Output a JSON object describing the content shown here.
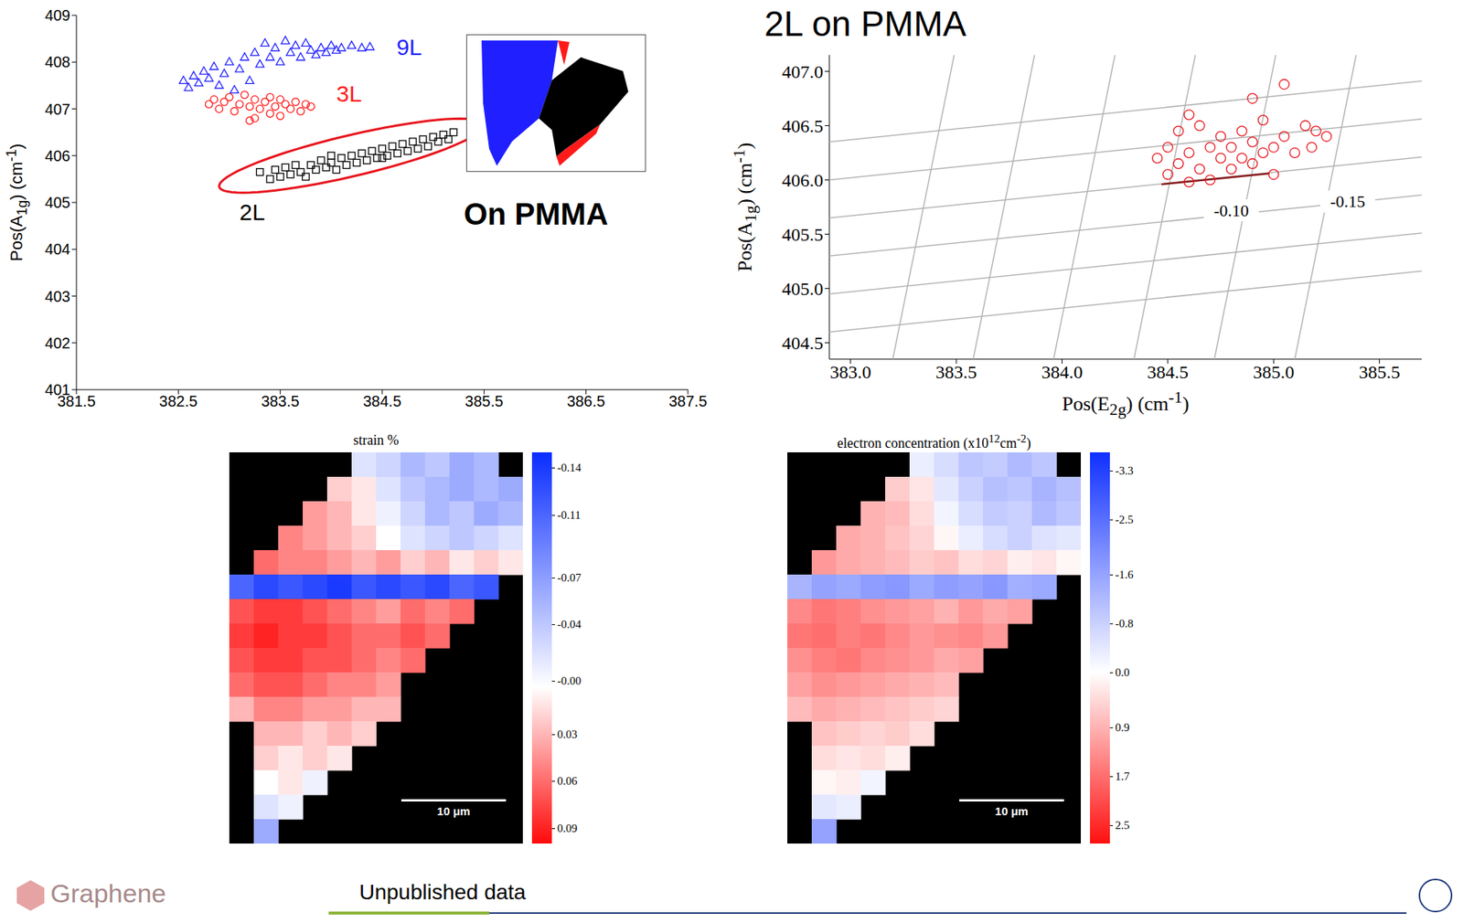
{
  "title": "2L on PMMA",
  "footer": {
    "note": "Unpublished data",
    "logo": "Graphene"
  },
  "chart_data": [
    {
      "type": "scatter",
      "grid": false,
      "xlim": [
        381.5,
        387.5
      ],
      "xticks": [
        381.5,
        382.5,
        383.5,
        384.5,
        385.5,
        386.5,
        387.5
      ],
      "ylim": [
        401,
        409
      ],
      "yticks": [
        401,
        402,
        403,
        404,
        405,
        406,
        407,
        408,
        409
      ],
      "y_label": "Pos(A1g) (cm-1)",
      "series": [
        {
          "name": "9L",
          "color": "#1f1fff",
          "marker": "triangle",
          "label_at": [
            384.64,
            408.32
          ],
          "x": [
            382.55,
            382.6,
            382.65,
            382.7,
            382.75,
            382.8,
            382.85,
            382.9,
            382.95,
            383.0,
            383.05,
            383.1,
            383.15,
            383.2,
            383.25,
            383.3,
            383.35,
            383.4,
            383.45,
            383.5,
            383.55,
            383.6,
            383.65,
            383.7,
            383.75,
            383.8,
            383.85,
            383.9,
            383.95,
            384.0,
            384.05,
            384.1,
            384.2,
            384.3,
            384.38
          ],
          "y": [
            407.6,
            407.45,
            407.7,
            407.55,
            407.8,
            407.65,
            407.9,
            407.5,
            407.75,
            408.0,
            407.4,
            407.85,
            408.1,
            407.6,
            408.2,
            407.95,
            408.4,
            408.1,
            408.3,
            408.0,
            408.45,
            408.2,
            408.35,
            408.1,
            408.4,
            408.25,
            408.15,
            408.3,
            408.2,
            408.35,
            408.25,
            408.3,
            408.35,
            408.3,
            408.32
          ]
        },
        {
          "name": "3L",
          "color": "#ff1a1a",
          "marker": "circle",
          "label_at": [
            384.05,
            407.33
          ],
          "x": [
            382.8,
            382.85,
            382.9,
            382.95,
            383.0,
            383.05,
            383.1,
            383.15,
            383.2,
            383.25,
            383.25,
            383.3,
            383.35,
            383.4,
            383.4,
            383.45,
            383.5,
            383.5,
            383.55,
            383.6,
            383.65,
            383.7,
            383.75,
            383.8,
            383.2
          ],
          "y": [
            407.1,
            407.2,
            407.0,
            407.15,
            407.25,
            406.95,
            407.1,
            407.3,
            407.05,
            406.8,
            407.2,
            407.0,
            407.15,
            406.9,
            407.25,
            407.05,
            407.2,
            406.85,
            407.1,
            407.0,
            407.15,
            406.95,
            407.1,
            407.05,
            406.75
          ]
        },
        {
          "name": "2L",
          "color": "#000000",
          "marker": "square",
          "label_at": [
            383.1,
            404.8
          ],
          "x": [
            383.3,
            383.4,
            383.45,
            383.5,
            383.55,
            383.6,
            383.65,
            383.7,
            383.75,
            383.8,
            383.85,
            383.9,
            383.95,
            384.0,
            384.05,
            384.1,
            384.15,
            384.2,
            384.25,
            384.3,
            384.35,
            384.4,
            384.45,
            384.5,
            384.55,
            384.6,
            384.65,
            384.7,
            384.75,
            384.8,
            384.85,
            384.9,
            384.95,
            385.0,
            385.05,
            385.1,
            385.15,
            385.2,
            384.0,
            384.5
          ],
          "y": [
            405.65,
            405.5,
            405.7,
            405.55,
            405.75,
            405.6,
            405.8,
            405.65,
            405.55,
            405.8,
            405.7,
            405.9,
            405.75,
            405.85,
            405.7,
            405.95,
            405.8,
            406.0,
            405.85,
            406.05,
            405.9,
            406.1,
            405.95,
            406.15,
            406.0,
            406.2,
            406.05,
            406.25,
            406.1,
            406.3,
            406.15,
            406.35,
            406.2,
            406.4,
            406.3,
            406.45,
            406.35,
            406.5,
            406.0,
            405.95
          ]
        }
      ],
      "highlight": {
        "cx": 384.2,
        "cy": 406.0,
        "rx": 1.3,
        "ry": 0.45,
        "slope": 0.5,
        "color": "#e8141c"
      },
      "annotations": [
        {
          "text": "On PMMA",
          "x": 385.3,
          "y": 404.75,
          "color": "#000000"
        }
      ]
    },
    {
      "type": "heatmap",
      "title": "strain %",
      "tick_labels": false,
      "scale_bar": "10 μm",
      "colorbar": {
        "range": [
          -0.15,
          0.1
        ],
        "ticks": [
          -0.14,
          -0.11,
          -0.07,
          -0.04,
          {
            "value": -0.004,
            "label": "-0.00"
          },
          0.03,
          0.06,
          0.09
        ],
        "colors": [
          "#0a2dff",
          "#ffffff",
          "#ff0a0a"
        ]
      },
      "cells": [
        [
          null,
          null,
          null,
          null,
          null,
          -0.02,
          -0.03,
          -0.05,
          -0.04,
          -0.06,
          -0.05,
          null
        ],
        [
          null,
          null,
          null,
          null,
          0.02,
          0.01,
          -0.02,
          -0.04,
          -0.05,
          -0.06,
          -0.05,
          -0.06
        ],
        [
          null,
          null,
          null,
          0.04,
          0.03,
          0.01,
          -0.01,
          -0.03,
          -0.05,
          -0.04,
          -0.06,
          -0.05
        ],
        [
          null,
          null,
          0.05,
          0.04,
          0.03,
          0.02,
          0,
          -0.02,
          -0.03,
          -0.04,
          -0.03,
          -0.02
        ],
        [
          null,
          0.06,
          0.05,
          0.05,
          0.04,
          0.03,
          0.04,
          0.02,
          0.03,
          0.01,
          0.02,
          0.01
        ],
        [
          -0.11,
          -0.13,
          -0.12,
          -0.13,
          -0.14,
          -0.12,
          -0.13,
          -0.12,
          -0.13,
          -0.11,
          -0.12,
          null
        ],
        [
          0.07,
          0.08,
          0.08,
          0.07,
          0.06,
          0.05,
          0.04,
          0.06,
          0.05,
          0.06,
          null,
          null
        ],
        [
          0.08,
          0.09,
          0.08,
          0.08,
          0.07,
          0.06,
          0.06,
          0.07,
          0.06,
          null,
          null,
          null
        ],
        [
          0.07,
          0.08,
          0.08,
          0.07,
          0.07,
          0.06,
          0.05,
          0.06,
          null,
          null,
          null,
          null
        ],
        [
          0.06,
          0.07,
          0.07,
          0.06,
          0.05,
          0.05,
          0.04,
          null,
          null,
          null,
          null,
          null
        ],
        [
          0.03,
          0.05,
          0.05,
          0.04,
          0.04,
          0.03,
          0.03,
          null,
          null,
          null,
          null,
          null
        ],
        [
          null,
          0.03,
          0.03,
          0.02,
          0.03,
          0.02,
          null,
          null,
          null,
          null,
          null,
          null
        ],
        [
          null,
          0.02,
          0.01,
          0.02,
          0.01,
          null,
          null,
          null,
          null,
          null,
          null,
          null
        ],
        [
          null,
          0,
          0.01,
          -0.01,
          null,
          null,
          null,
          null,
          null,
          null,
          null,
          null
        ],
        [
          null,
          -0.02,
          -0.01,
          null,
          null,
          null,
          null,
          null,
          null,
          null,
          null,
          null
        ],
        [
          null,
          -0.06,
          null,
          null,
          null,
          null,
          null,
          null,
          null,
          null,
          null,
          null
        ]
      ]
    },
    {
      "type": "heatmap",
      "title": "electron concentration (x1012cm-2)",
      "tick_labels": false,
      "scale_bar": "10 μm",
      "colorbar": {
        "range": [
          -3.6,
          2.8
        ],
        "ticks": [
          -3.3,
          -2.5,
          -1.6,
          -0.8,
          {
            "value": 0,
            "label": "0.0"
          },
          0.9,
          1.7,
          2.5
        ],
        "colors": [
          "#1030ff",
          "#ffffff",
          "#ff1010"
        ]
      },
      "cells": [
        [
          null,
          null,
          null,
          null,
          null,
          -0.3,
          -0.6,
          -1.0,
          -0.9,
          -1.2,
          -1.0,
          null
        ],
        [
          null,
          null,
          null,
          null,
          0.6,
          0.3,
          -0.4,
          -0.8,
          -1.1,
          -1.0,
          -1.3,
          -1.1
        ],
        [
          null,
          null,
          null,
          0.9,
          0.8,
          0.4,
          -0.2,
          -0.6,
          -0.9,
          -0.8,
          -1.2,
          -1.0
        ],
        [
          null,
          null,
          1.0,
          0.9,
          0.7,
          0.5,
          0.1,
          -0.3,
          -0.6,
          -0.8,
          -0.5,
          -0.4
        ],
        [
          null,
          1.2,
          1.0,
          0.9,
          0.8,
          0.6,
          0.7,
          0.4,
          0.5,
          0.2,
          0.3,
          0.1
        ],
        [
          -1.3,
          -1.6,
          -1.5,
          -1.7,
          -1.8,
          -1.5,
          -1.7,
          -1.6,
          -1.8,
          -1.4,
          -1.5,
          null
        ],
        [
          1.4,
          1.6,
          1.5,
          1.3,
          1.2,
          1.1,
          0.9,
          1.2,
          1.0,
          1.1,
          null,
          null
        ],
        [
          1.6,
          1.7,
          1.5,
          1.6,
          1.4,
          1.2,
          1.3,
          1.4,
          1.2,
          null,
          null,
          null
        ],
        [
          1.3,
          1.5,
          1.6,
          1.4,
          1.3,
          1.2,
          1.0,
          1.1,
          null,
          null,
          null,
          null
        ],
        [
          1.1,
          1.3,
          1.2,
          1.1,
          1.0,
          0.9,
          0.8,
          null,
          null,
          null,
          null,
          null
        ],
        [
          0.8,
          1.0,
          0.9,
          0.8,
          0.7,
          0.6,
          0.5,
          null,
          null,
          null,
          null,
          null
        ],
        [
          null,
          0.7,
          0.6,
          0.5,
          0.6,
          0.4,
          null,
          null,
          null,
          null,
          null,
          null
        ],
        [
          null,
          0.4,
          0.3,
          0.4,
          0.2,
          null,
          null,
          null,
          null,
          null,
          null,
          null
        ],
        [
          null,
          0.1,
          0.2,
          -0.2,
          null,
          null,
          null,
          null,
          null,
          null,
          null,
          null
        ],
        [
          null,
          -0.4,
          -0.3,
          null,
          null,
          null,
          null,
          null,
          null,
          null,
          null,
          null
        ],
        [
          null,
          -1.6,
          null,
          null,
          null,
          null,
          null,
          null,
          null,
          null,
          null,
          null
        ]
      ]
    },
    {
      "type": "scatter",
      "grid": false,
      "xlim": [
        382.9,
        385.7
      ],
      "xticks": [
        {
          "value": 383,
          "label": "383.0"
        },
        383.5,
        {
          "value": 384,
          "label": "384.0"
        },
        384.5,
        {
          "value": 385,
          "label": "385.0"
        },
        385.5
      ],
      "ylim": [
        404.35,
        407.15
      ],
      "yticks": [
        404.5,
        {
          "value": 405,
          "label": "405.0"
        },
        405.5,
        {
          "value": 406,
          "label": "406.0"
        },
        406.5,
        {
          "value": 407,
          "label": "407.0"
        }
      ],
      "x_label": "Pos(E2g) (cm-1)",
      "y_label": "Pos(A1g) (cm-1)",
      "iso_lines": {
        "color": "#b4b4b4",
        "lines": [
          {
            "x": [
              383.2,
              383.49
            ],
            "y": [
              404.35,
              407.15
            ]
          },
          {
            "x": [
              383.58,
              383.87
            ],
            "y": [
              404.35,
              407.15
            ]
          },
          {
            "x": [
              383.96,
              384.25
            ],
            "y": [
              404.35,
              407.15
            ]
          },
          {
            "x": [
              384.34,
              384.63
            ],
            "y": [
              404.35,
              407.15
            ]
          },
          {
            "x": [
              384.72,
              385.01
            ],
            "y": [
              404.35,
              407.15
            ]
          },
          {
            "x": [
              385.1,
              385.39
            ],
            "y": [
              404.35,
              407.15
            ]
          },
          {
            "x": [
              382.9,
              385.7
            ],
            "y": [
              404.6,
              405.16
            ]
          },
          {
            "x": [
              382.9,
              385.7
            ],
            "y": [
              404.95,
              405.51
            ]
          },
          {
            "x": [
              382.9,
              385.7
            ],
            "y": [
              405.3,
              405.86
            ]
          },
          {
            "x": [
              382.9,
              385.7
            ],
            "y": [
              405.65,
              406.21
            ]
          },
          {
            "x": [
              382.9,
              385.7
            ],
            "y": [
              406.0,
              406.56
            ]
          },
          {
            "x": [
              382.9,
              385.7
            ],
            "y": [
              406.35,
              406.91
            ]
          }
        ]
      },
      "series": [
        {
          "type": "line",
          "color": "#8b1a1a",
          "x": [
            384.47,
            384.98
          ],
          "y": [
            405.96,
            406.06
          ]
        },
        {
          "color": "#e8141c",
          "marker": "circle",
          "x": [
            384.45,
            384.5,
            384.5,
            384.55,
            384.6,
            384.6,
            384.65,
            384.7,
            384.7,
            384.75,
            384.75,
            384.8,
            384.8,
            384.85,
            384.85,
            384.9,
            384.9,
            384.95,
            385.0,
            385.0,
            385.05,
            385.1,
            385.15,
            385.2,
            385.25,
            385.18,
            384.95,
            385.05,
            384.65,
            384.55,
            384.9,
            384.6
          ],
          "y": [
            406.2,
            406.3,
            406.05,
            406.15,
            406.25,
            405.98,
            406.1,
            406.3,
            406.0,
            406.2,
            406.4,
            406.1,
            406.3,
            406.2,
            406.45,
            406.15,
            406.35,
            406.25,
            406.3,
            406.05,
            406.4,
            406.25,
            406.5,
            406.45,
            406.4,
            406.3,
            406.55,
            406.88,
            406.5,
            406.45,
            406.75,
            406.6
          ]
        }
      ],
      "annotations": [
        {
          "text": "-0.10",
          "x": 384.8,
          "y": 405.72,
          "color": "#000000"
        },
        {
          "text": "-0.15",
          "x": 385.35,
          "y": 405.8,
          "color": "#000000"
        }
      ]
    }
  ]
}
